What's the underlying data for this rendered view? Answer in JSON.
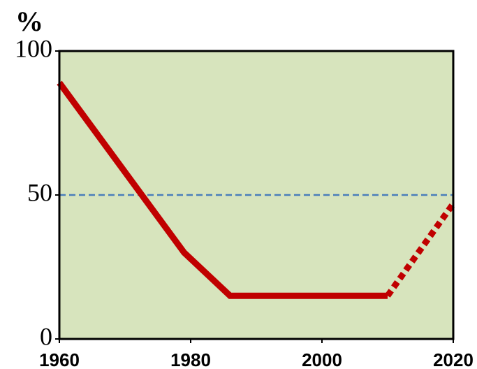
{
  "chart_data": {
    "type": "line",
    "ylabel": "%",
    "x": [
      1960,
      1979,
      1986,
      2010,
      2020
    ],
    "series": [
      {
        "color": "#c00000",
        "style": "solid",
        "values": [
          89,
          30,
          15,
          15,
          null
        ]
      },
      {
        "color": "#c00000",
        "style": "dotted",
        "values": [
          null,
          null,
          null,
          15,
          47
        ]
      }
    ],
    "xlim": [
      1960,
      2020
    ],
    "xticks": [
      1960,
      1980,
      2000,
      2020
    ],
    "ylim": [
      0,
      100
    ],
    "yticks": [
      0,
      50,
      100
    ],
    "hlines": [
      {
        "value": 50,
        "color": "#4a7ebb",
        "style": "dashed"
      }
    ],
    "background": "#d7e4bd"
  }
}
